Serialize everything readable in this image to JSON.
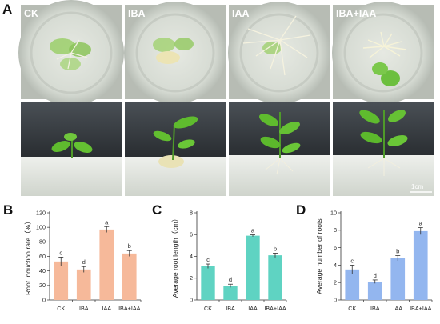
{
  "panel_a": {
    "letter": "A",
    "treatments": [
      "CK",
      "IBA",
      "IAA",
      "IBA+IAA"
    ],
    "scale_bar": "1cm",
    "colors": {
      "agar": "#d9ddd6",
      "rim": "#c9cec6",
      "leaf": "#5fbb2e",
      "dark_bg": "#2e3236",
      "callus": "#e9e2b5"
    }
  },
  "chart_data": [
    {
      "letter": "B",
      "type": "bar",
      "categories": [
        "CK",
        "IBA",
        "IAA",
        "IBA+IAA"
      ],
      "values": [
        53,
        42,
        97,
        64
      ],
      "errors": [
        6,
        4,
        4,
        4
      ],
      "significance": [
        "c",
        "d",
        "a",
        "b"
      ],
      "title": "",
      "xlabel": "",
      "ylabel": "Root induction rate（%）",
      "ylim": [
        0,
        120
      ],
      "yticks": [
        0,
        20,
        40,
        60,
        80,
        100,
        120
      ],
      "color": "#f6b99a",
      "grid": false
    },
    {
      "letter": "C",
      "type": "bar",
      "categories": [
        "CK",
        "IBA",
        "IAA",
        "IBA+IAA"
      ],
      "values": [
        3.1,
        1.3,
        5.9,
        4.1
      ],
      "errors": [
        0.2,
        0.15,
        0.08,
        0.2
      ],
      "significance": [
        "c",
        "d",
        "a",
        "b"
      ],
      "title": "",
      "xlabel": "",
      "ylabel": "Average root length（cm）",
      "ylim": [
        0,
        8
      ],
      "yticks": [
        0,
        2,
        4,
        6,
        8
      ],
      "color": "#5fd3c2",
      "grid": false
    },
    {
      "letter": "D",
      "type": "bar",
      "categories": [
        "CK",
        "IBA",
        "IAA",
        "IBA+IAA"
      ],
      "values": [
        3.5,
        2.1,
        4.8,
        7.9
      ],
      "errors": [
        0.5,
        0.2,
        0.3,
        0.4
      ],
      "significance": [
        "c",
        "d",
        "b",
        "a"
      ],
      "title": "",
      "xlabel": "",
      "ylabel": "Average number of roots",
      "ylim": [
        0,
        10
      ],
      "yticks": [
        0,
        2,
        4,
        6,
        8,
        10
      ],
      "color": "#93b6ef",
      "grid": false
    }
  ]
}
